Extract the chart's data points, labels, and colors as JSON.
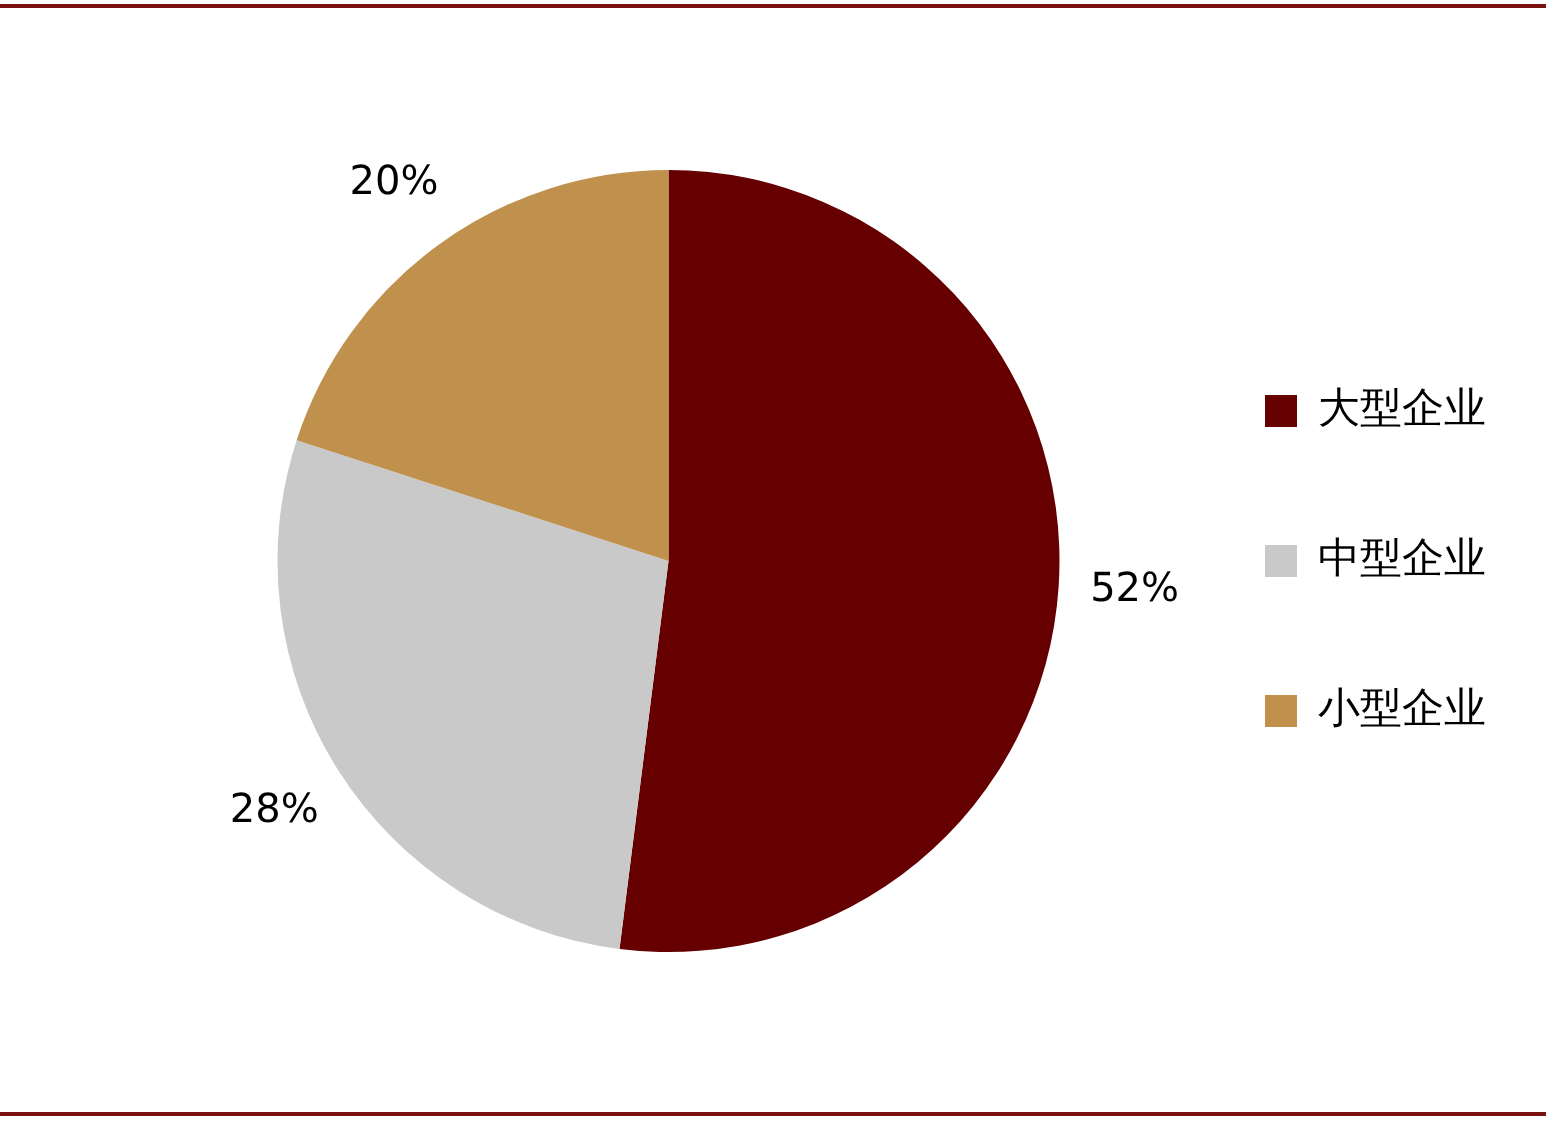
{
  "chart_data": {
    "type": "pie",
    "categories": [
      "大型企业",
      "中型企业",
      "小型企业"
    ],
    "values": [
      52,
      28,
      20
    ],
    "colors": [
      "#660000",
      "#c9c9c9",
      "#c0904d"
    ],
    "value_labels": [
      "52%",
      "28%",
      "20%"
    ],
    "legend": "right"
  }
}
